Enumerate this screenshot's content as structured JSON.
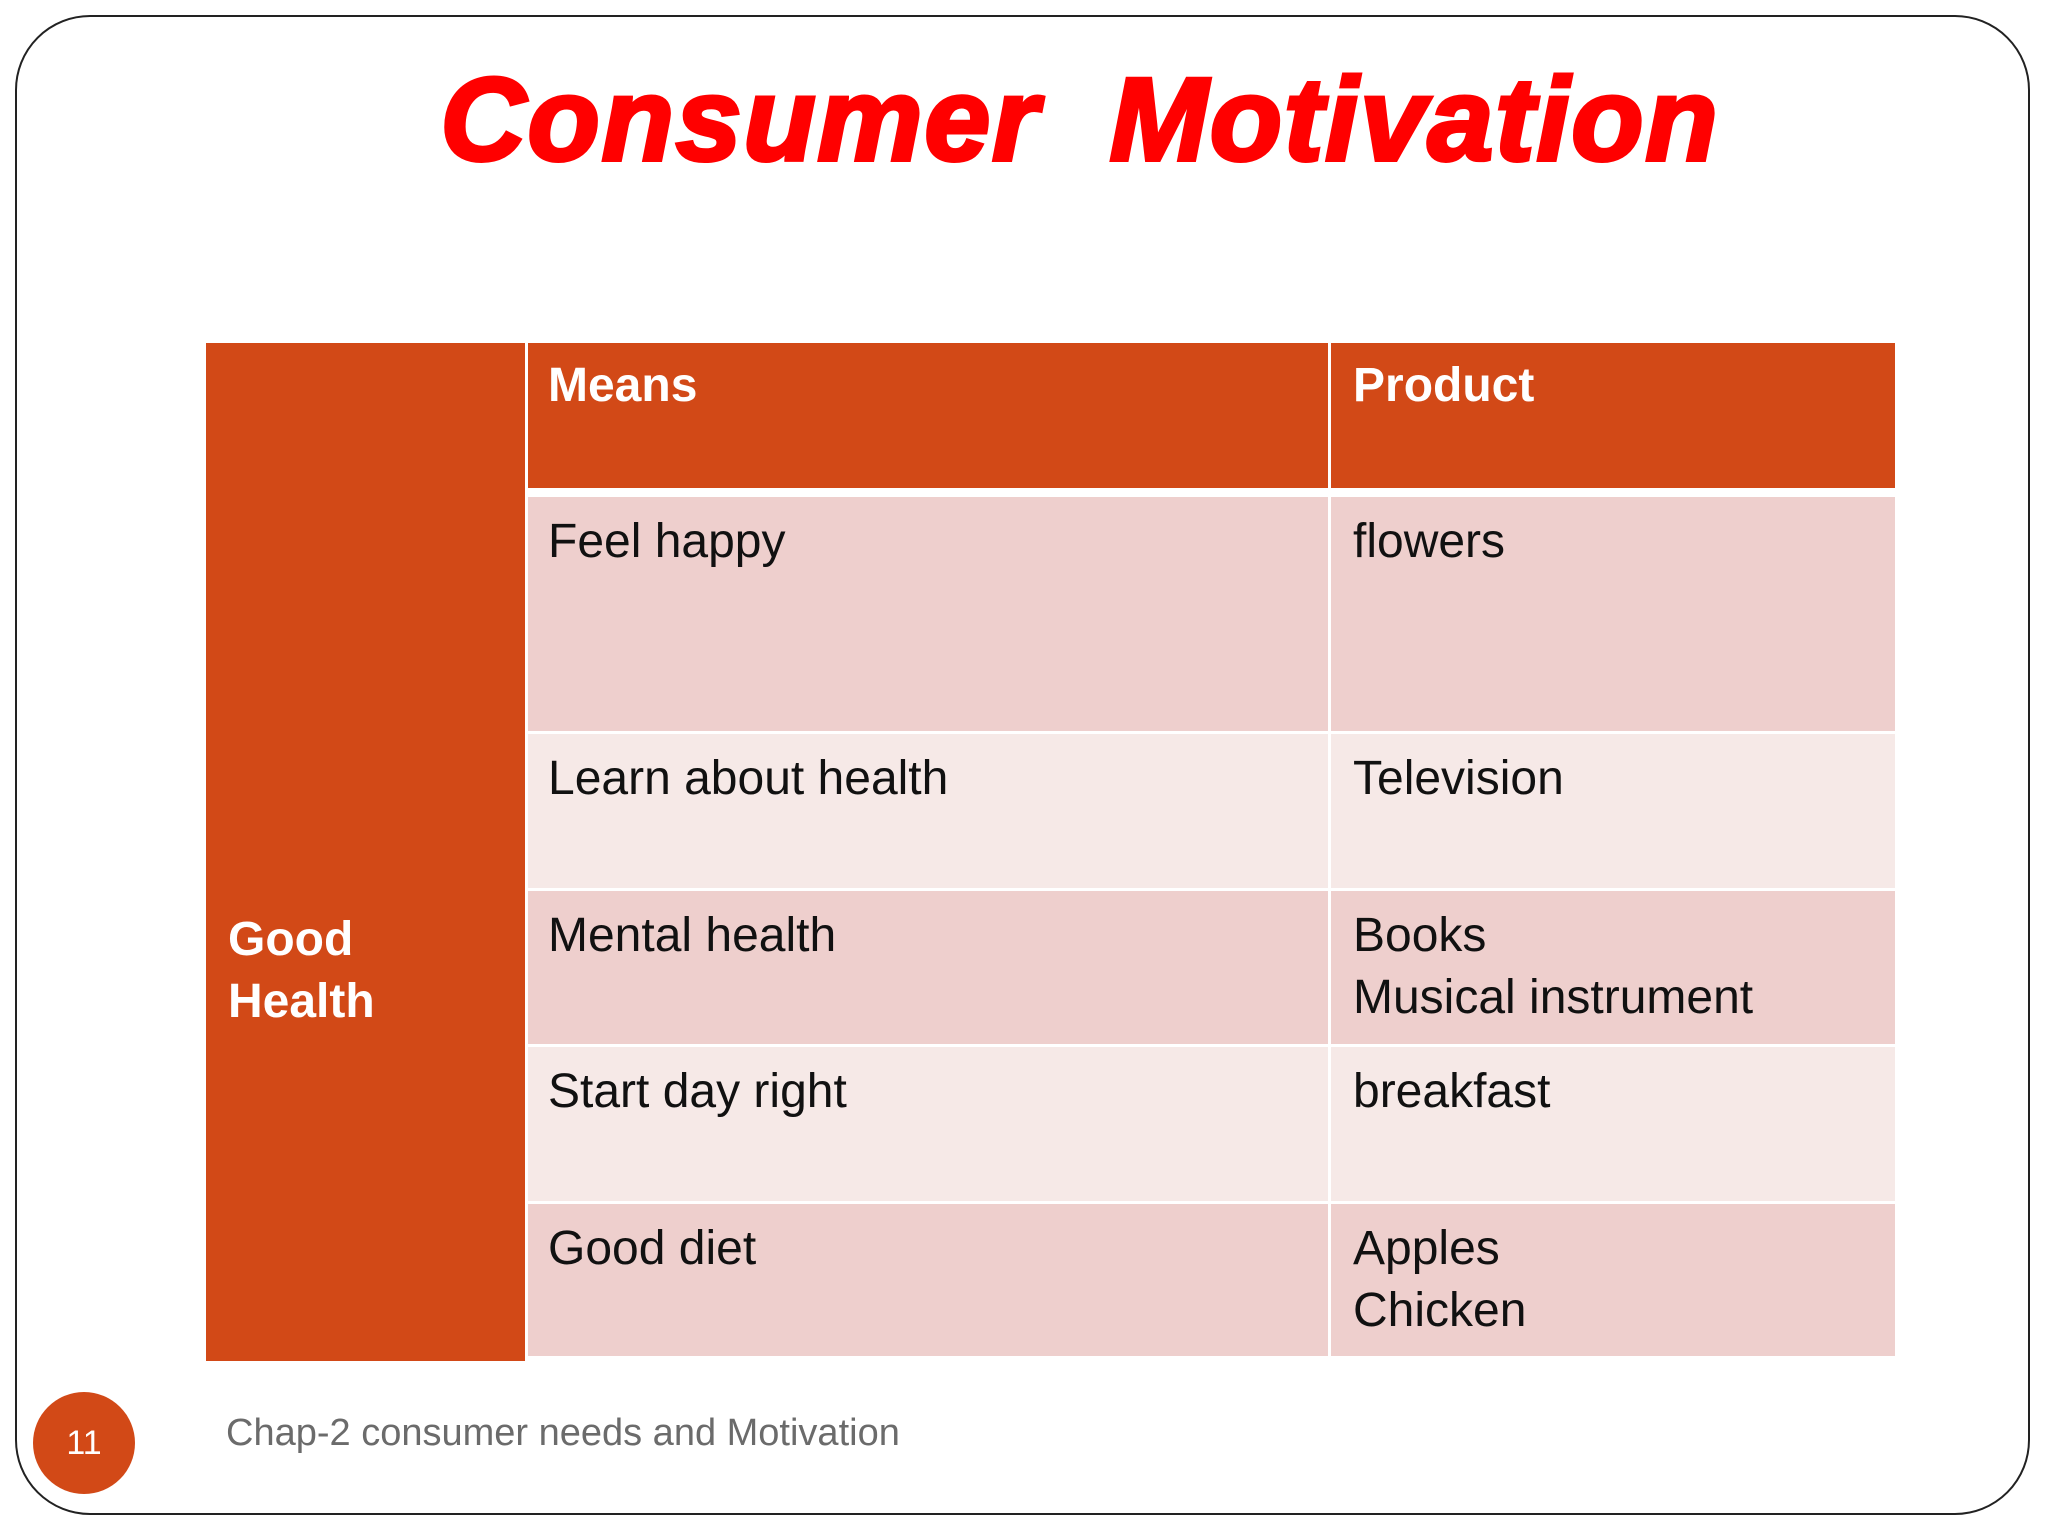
{
  "slide": {
    "title": "Consumer  Motivation",
    "page_number": "11",
    "footer": "Chap-2 consumer needs and Motivation"
  },
  "table": {
    "goal_lines": [
      "Good",
      "Health"
    ],
    "headers": {
      "means": "Means",
      "product": "Product"
    },
    "rows": [
      {
        "means": "Feel happy",
        "product": [
          "flowers"
        ]
      },
      {
        "means": "Learn about health",
        "product": [
          "Television"
        ]
      },
      {
        "means": "Mental health",
        "product": [
          "Books",
          "Musical instrument"
        ]
      },
      {
        "means": "Start day right",
        "product": [
          "breakfast"
        ]
      },
      {
        "means": "Good diet",
        "product": [
          "Apples",
          "Chicken"
        ]
      }
    ]
  },
  "colors": {
    "title": "#ff0000",
    "accent": "#d24917",
    "row_dark": "#eecfcd",
    "row_light": "#f6e9e7",
    "footer_text": "#6b6b6b"
  }
}
